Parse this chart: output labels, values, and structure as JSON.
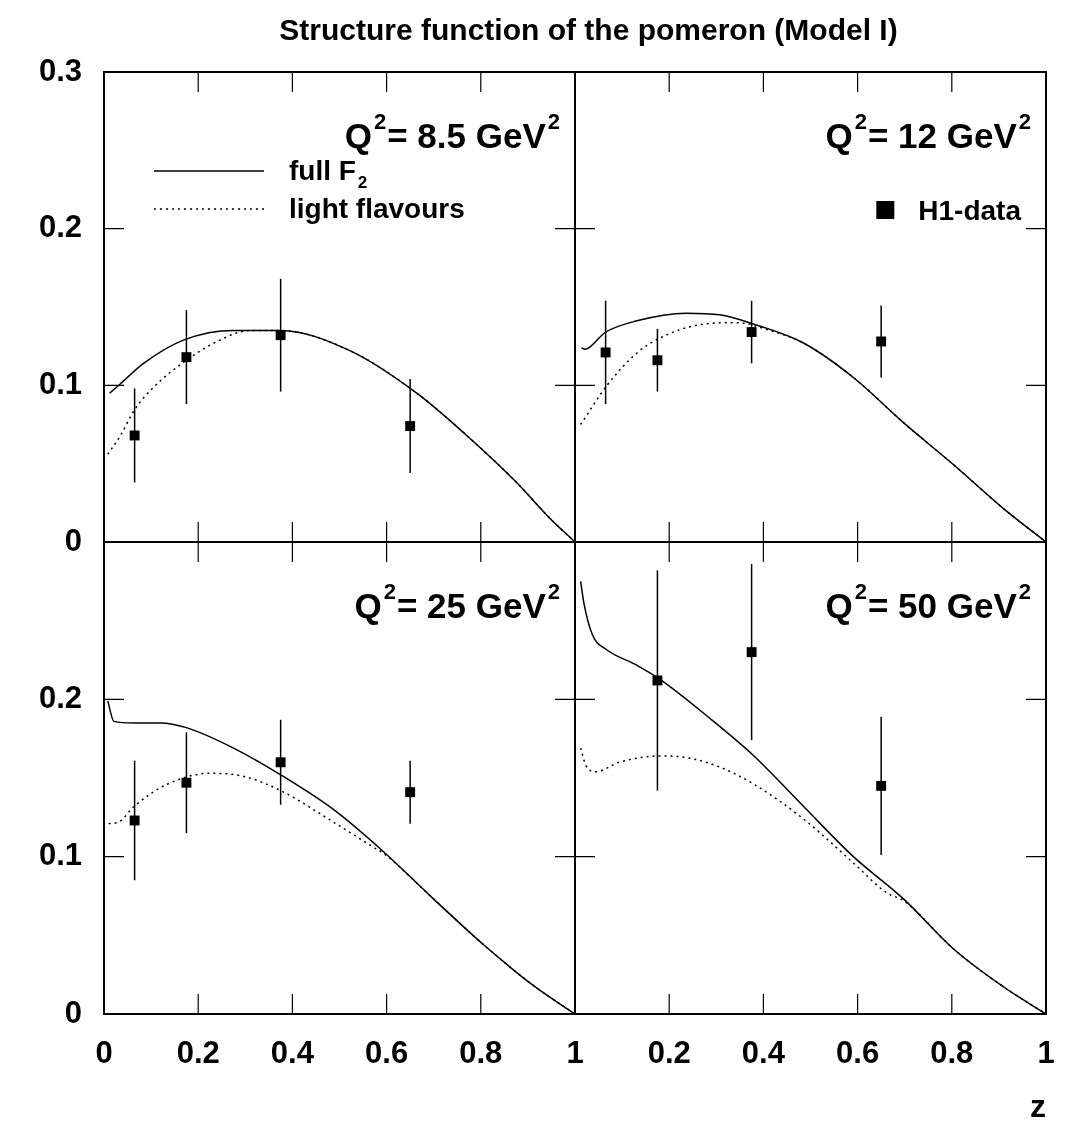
{
  "chart_data": [
    {
      "type": "line",
      "title": "Structure function of the pomeron (Model I)",
      "annotations": [
        "Q$^{2}$= 8.5 GeV$^{2}$"
      ],
      "xlim": [
        0,
        1
      ],
      "ylim": [
        0,
        0.3
      ],
      "xticks": [
        0,
        0.2,
        0.4,
        0.6,
        0.8,
        1
      ],
      "yticks": [
        0,
        0.1,
        0.2,
        0.3
      ],
      "tick_labels": "y",
      "legend": "top left",
      "series": [
        {
          "name": "full F$_{2}$",
          "type": "line",
          "color": "#000000",
          "line_style": "solid",
          "marker": "none",
          "x": [
            0.012,
            0.035,
            0.084,
            0.17,
            0.275,
            0.374,
            0.523,
            0.664,
            0.77,
            0.876,
            0.947,
            1
          ],
          "values": [
            0.095,
            0.101,
            0.114,
            0.129,
            0.135,
            0.135,
            0.122,
            0.095,
            0.068,
            0.038,
            0.015,
            0
          ]
        },
        {
          "name": "light flavours",
          "type": "line",
          "color": "#000000",
          "line_style": "dotted",
          "marker": "none",
          "x": [
            0.008,
            0.035,
            0.064,
            0.106,
            0.175,
            0.24,
            0.31,
            0.374,
            0.523,
            0.664,
            0.77,
            0.876,
            0.947,
            1
          ],
          "values": [
            0.056,
            0.068,
            0.084,
            0.099,
            0.116,
            0.128,
            0.135,
            0.135,
            0.122,
            0.095,
            0.068,
            0.038,
            0.015,
            0
          ]
        },
        {
          "type": "scatter",
          "color": "#000000",
          "marker": "square",
          "x": [
            0.065,
            0.175,
            0.375,
            0.65
          ],
          "values": [
            0.068,
            0.118,
            0.132,
            0.074
          ],
          "errors": [
            0.03,
            0.03,
            0.036,
            0.03
          ]
        }
      ]
    },
    {
      "type": "line",
      "annotations": [
        "Q$^{2}$= 12 GeV$^{2}$"
      ],
      "xlim": [
        0,
        1
      ],
      "ylim": [
        0,
        0.3
      ],
      "xticks": [
        0,
        0.2,
        0.4,
        0.6,
        0.8,
        1
      ],
      "yticks": [
        0,
        0.1,
        0.2,
        0.3
      ],
      "tick_labels": false,
      "legend": "top right",
      "series": [
        {
          "type": "line",
          "color": "#000000",
          "line_style": "solid",
          "marker": "none",
          "x": [
            0.014,
            0.021,
            0.065,
            0.129,
            0.236,
            0.307,
            0.38,
            0.485,
            0.591,
            0.698,
            0.805,
            0.911,
            1
          ],
          "values": [
            0.124,
            0.123,
            0.134,
            0.141,
            0.146,
            0.145,
            0.139,
            0.127,
            0.105,
            0.076,
            0.049,
            0.021,
            0
          ]
        },
        {
          "type": "line",
          "color": "#000000",
          "line_style": "dotted",
          "marker": "none",
          "x": [
            0.012,
            0.068,
            0.129,
            0.179,
            0.271,
            0.343,
            0.414,
            0.485,
            0.591,
            0.698,
            0.805,
            0.911,
            1
          ],
          "values": [
            0.075,
            0.1,
            0.12,
            0.13,
            0.139,
            0.14,
            0.135,
            0.127,
            0.105,
            0.076,
            0.049,
            0.021,
            0
          ]
        },
        {
          "name": "H1-data",
          "type": "scatter",
          "color": "#000000",
          "marker": "square",
          "x": [
            0.065,
            0.175,
            0.375,
            0.65
          ],
          "values": [
            0.121,
            0.116,
            0.134,
            0.128
          ],
          "errors": [
            0.033,
            0.02,
            0.02,
            0.023
          ]
        }
      ]
    },
    {
      "type": "line",
      "annotations": [
        "Q$^{2}$= 25 GeV$^{2}$"
      ],
      "xlim": [
        0,
        1
      ],
      "ylim": [
        0,
        0.3
      ],
      "xticks": [
        0,
        0.2,
        0.4,
        0.6,
        0.8,
        1
      ],
      "yticks": [
        0,
        0.1,
        0.2,
        {
          "value": 0.3,
          "label": null
        }
      ],
      "series": [
        {
          "type": "line",
          "color": "#000000",
          "line_style": "solid",
          "marker": "none",
          "x": [
            0.008,
            0.021,
            0.063,
            0.12,
            0.175,
            0.275,
            0.375,
            0.487,
            0.594,
            0.7,
            0.806,
            0.912,
            1
          ],
          "values": [
            0.199,
            0.186,
            0.185,
            0.185,
            0.182,
            0.169,
            0.152,
            0.13,
            0.103,
            0.073,
            0.044,
            0.018,
            0
          ]
        },
        {
          "type": "line",
          "color": "#000000",
          "line_style": "dotted",
          "marker": "none",
          "x": [
            0.01,
            0.031,
            0.064,
            0.134,
            0.226,
            0.297,
            0.375,
            0.487,
            0.572,
            0.594,
            0.7,
            0.806,
            0.912,
            1
          ],
          "values": [
            0.121,
            0.122,
            0.132,
            0.146,
            0.153,
            0.151,
            0.142,
            0.122,
            0.106,
            0.102,
            0.073,
            0.044,
            0.018,
            0
          ]
        },
        {
          "type": "scatter",
          "color": "#000000",
          "marker": "square",
          "x": [
            0.065,
            0.175,
            0.375,
            0.65
          ],
          "values": [
            0.123,
            0.147,
            0.16,
            0.141
          ],
          "errors": [
            0.038,
            0.032,
            0.027,
            0.02
          ]
        }
      ]
    },
    {
      "type": "line",
      "annotations": [
        "Q$^{2}$= 50 GeV$^{2}$"
      ],
      "xlabel": "z",
      "xlim": [
        0,
        1
      ],
      "ylim": [
        0,
        0.3
      ],
      "xticks": [
        {
          "value": 0,
          "label": null
        },
        0.2,
        0.4,
        0.6,
        0.8,
        1
      ],
      "yticks": [
        0,
        0.1,
        0.2,
        0.3
      ],
      "tick_labels": "x",
      "series": [
        {
          "type": "line",
          "color": "#000000",
          "line_style": "solid",
          "marker": "none",
          "x": [
            0.012,
            0.019,
            0.037,
            0.065,
            0.129,
            0.179,
            0.286,
            0.38,
            0.485,
            0.591,
            0.698,
            0.805,
            0.911,
            1
          ],
          "values": [
            0.275,
            0.261,
            0.241,
            0.232,
            0.222,
            0.213,
            0.188,
            0.164,
            0.132,
            0.1,
            0.073,
            0.041,
            0.017,
            0
          ]
        },
        {
          "type": "line",
          "color": "#000000",
          "line_style": "dotted",
          "marker": "none",
          "x": [
            0.012,
            0.023,
            0.044,
            0.094,
            0.179,
            0.236,
            0.307,
            0.38,
            0.485,
            0.591,
            0.662,
            0.698,
            0.805,
            0.911,
            1
          ],
          "values": [
            0.169,
            0.158,
            0.154,
            0.16,
            0.164,
            0.163,
            0.157,
            0.146,
            0.124,
            0.096,
            0.077,
            0.072,
            0.041,
            0.017,
            0
          ]
        },
        {
          "type": "scatter",
          "color": "#000000",
          "marker": "square",
          "x": [
            0.175,
            0.375,
            0.65
          ],
          "values": [
            0.212,
            0.23,
            0.145
          ],
          "errors": [
            0.07,
            0.056,
            0.044
          ]
        }
      ]
    }
  ]
}
